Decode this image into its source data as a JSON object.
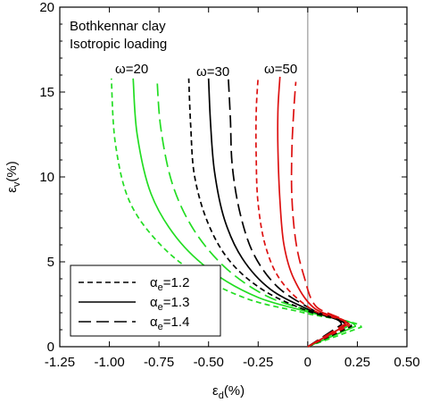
{
  "chart_data": {
    "type": "line",
    "title": "",
    "xlabel": {
      "main": "ε",
      "sub": "d",
      "unit": "(%)"
    },
    "ylabel": {
      "main": "ε",
      "sub": "v",
      "unit": "(%)"
    },
    "xlim": [
      -1.25,
      0.5
    ],
    "ylim": [
      0,
      20
    ],
    "xticks": [
      -1.25,
      -1.0,
      -0.75,
      -0.5,
      -0.25,
      0,
      0.25,
      0.5
    ],
    "xtick_labels": [
      "-1.25",
      "-1.00",
      "-0.75",
      "-0.50",
      "-0.25",
      "0",
      "0.25",
      "0.50"
    ],
    "yticks": [
      0,
      5,
      10,
      15,
      20
    ],
    "ytick_labels": [
      "0",
      "5",
      "10",
      "15",
      "20"
    ],
    "grid": false,
    "reference_line": {
      "x": 0,
      "color": "#999999"
    },
    "annotations": [
      {
        "text": "Bothkennar clay"
      },
      {
        "text": "Isotropic loading"
      },
      {
        "text": "ω=20"
      },
      {
        "text": "ω=30"
      },
      {
        "text": "ω=50"
      }
    ],
    "legend": {
      "placement": "lower-left",
      "entries": [
        {
          "main": "α",
          "sub": "e",
          "value": "=1.2",
          "dash": "dashed"
        },
        {
          "main": "α",
          "sub": "e",
          "value": "=1.3",
          "dash": "solid"
        },
        {
          "main": "α",
          "sub": "e",
          "value": "=1.4",
          "dash": "longdash"
        }
      ]
    },
    "series": [
      {
        "omega": "20",
        "alpha": "1.2",
        "color": "#22dd22",
        "dash": "dashed",
        "points": [
          [
            0,
            0
          ],
          [
            0.27,
            1.15
          ],
          [
            -0.02,
            2.0
          ],
          [
            -0.3,
            2.8
          ],
          [
            -0.55,
            4.2
          ],
          [
            -0.75,
            6.1
          ],
          [
            -0.9,
            8.6
          ],
          [
            -0.97,
            12
          ],
          [
            -0.99,
            15.8
          ]
        ]
      },
      {
        "omega": "20",
        "alpha": "1.3",
        "color": "#22dd22",
        "dash": "solid",
        "points": [
          [
            0,
            0
          ],
          [
            0.24,
            1.2
          ],
          [
            0.0,
            2.05
          ],
          [
            -0.25,
            2.9
          ],
          [
            -0.48,
            4.4
          ],
          [
            -0.66,
            6.4
          ],
          [
            -0.79,
            9.0
          ],
          [
            -0.86,
            12.5
          ],
          [
            -0.88,
            15.8
          ]
        ]
      },
      {
        "omega": "20",
        "alpha": "1.4",
        "color": "#22dd22",
        "dash": "longdash",
        "points": [
          [
            0,
            0
          ],
          [
            0.21,
            1.25
          ],
          [
            0.01,
            2.1
          ],
          [
            -0.21,
            3.0
          ],
          [
            -0.41,
            4.6
          ],
          [
            -0.57,
            6.8
          ],
          [
            -0.68,
            9.5
          ],
          [
            -0.74,
            12.8
          ],
          [
            -0.76,
            15.8
          ]
        ]
      },
      {
        "omega": "30",
        "alpha": "1.2",
        "color": "#000000",
        "dash": "dashed",
        "points": [
          [
            0,
            0
          ],
          [
            0.22,
            1.2
          ],
          [
            0.0,
            2.1
          ],
          [
            -0.22,
            3.3
          ],
          [
            -0.39,
            5.0
          ],
          [
            -0.5,
            7.2
          ],
          [
            -0.57,
            10.0
          ],
          [
            -0.59,
            13
          ],
          [
            -0.6,
            15.8
          ]
        ]
      },
      {
        "omega": "30",
        "alpha": "1.3",
        "color": "#000000",
        "dash": "solid",
        "points": [
          [
            0,
            0
          ],
          [
            0.19,
            1.25
          ],
          [
            0.01,
            2.15
          ],
          [
            -0.19,
            3.4
          ],
          [
            -0.33,
            5.2
          ],
          [
            -0.42,
            7.5
          ],
          [
            -0.47,
            10.3
          ],
          [
            -0.49,
            13.2
          ],
          [
            -0.5,
            15.8
          ]
        ]
      },
      {
        "omega": "30",
        "alpha": "1.4",
        "color": "#000000",
        "dash": "longdash",
        "points": [
          [
            0,
            0
          ],
          [
            0.17,
            1.3
          ],
          [
            0.02,
            2.2
          ],
          [
            -0.15,
            3.5
          ],
          [
            -0.27,
            5.4
          ],
          [
            -0.34,
            7.8
          ],
          [
            -0.38,
            10.6
          ],
          [
            -0.39,
            13.4
          ],
          [
            -0.4,
            15.8
          ]
        ]
      },
      {
        "omega": "50",
        "alpha": "1.2",
        "color": "#dd1111",
        "dash": "dashed",
        "points": [
          [
            0,
            0
          ],
          [
            0.21,
            1.25
          ],
          [
            0.02,
            2.2
          ],
          [
            -0.13,
            3.8
          ],
          [
            -0.21,
            5.8
          ],
          [
            -0.25,
            8.4
          ],
          [
            -0.26,
            11.2
          ],
          [
            -0.26,
            13.8
          ],
          [
            -0.25,
            15.9
          ]
        ]
      },
      {
        "omega": "50",
        "alpha": "1.3",
        "color": "#dd1111",
        "dash": "solid",
        "points": [
          [
            0,
            0
          ],
          [
            0.2,
            1.3
          ],
          [
            0.03,
            2.3
          ],
          [
            -0.07,
            4.0
          ],
          [
            -0.12,
            6.0
          ],
          [
            -0.14,
            8.6
          ],
          [
            -0.15,
            11.5
          ],
          [
            -0.15,
            14
          ],
          [
            -0.14,
            15.9
          ]
        ]
      },
      {
        "omega": "50",
        "alpha": "1.4",
        "color": "#dd1111",
        "dash": "longdash",
        "points": [
          [
            0,
            0
          ],
          [
            0.19,
            1.35
          ],
          [
            0.04,
            2.4
          ],
          [
            -0.02,
            4.2
          ],
          [
            -0.06,
            6.2
          ],
          [
            -0.08,
            8.8
          ],
          [
            -0.08,
            11.6
          ],
          [
            -0.07,
            14
          ],
          [
            -0.06,
            15.6
          ]
        ]
      }
    ]
  }
}
